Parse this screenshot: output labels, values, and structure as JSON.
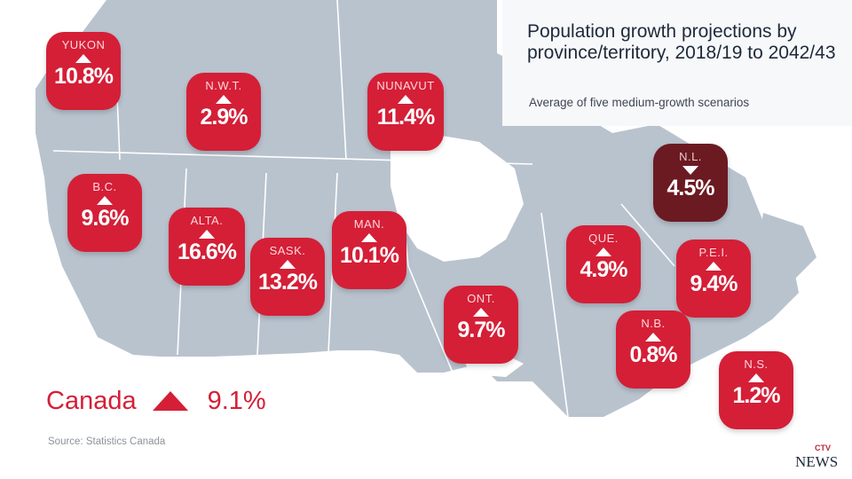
{
  "title": "Population growth projections by province/territory, 2018/19 to 2042/43",
  "subtitle": "Average of five medium-growth scenarios",
  "regions": [
    {
      "abbr": "YUKON",
      "value": "10.8%",
      "direction": "up"
    },
    {
      "abbr": "N.W.T.",
      "value": "2.9%",
      "direction": "up"
    },
    {
      "abbr": "NUNAVUT",
      "value": "11.4%",
      "direction": "up"
    },
    {
      "abbr": "N.L.",
      "value": "4.5%",
      "direction": "down"
    },
    {
      "abbr": "B.C.",
      "value": "9.6%",
      "direction": "up"
    },
    {
      "abbr": "ALTA.",
      "value": "16.6%",
      "direction": "up"
    },
    {
      "abbr": "SASK.",
      "value": "13.2%",
      "direction": "up"
    },
    {
      "abbr": "MAN.",
      "value": "10.1%",
      "direction": "up"
    },
    {
      "abbr": "QUE.",
      "value": "4.9%",
      "direction": "up"
    },
    {
      "abbr": "P.E.I.",
      "value": "9.4%",
      "direction": "up"
    },
    {
      "abbr": "ONT.",
      "value": "9.7%",
      "direction": "up"
    },
    {
      "abbr": "N.B.",
      "value": "0.8%",
      "direction": "up"
    },
    {
      "abbr": "N.S.",
      "value": "1.2%",
      "direction": "up"
    }
  ],
  "national": {
    "name": "Canada",
    "value": "9.1%",
    "direction": "up"
  },
  "source": "Source: Statistics Canada",
  "logo": {
    "top": "CTV",
    "bottom": "NEWS"
  },
  "colors": {
    "increase": "#d41f37",
    "decrease": "#6b1a22",
    "land": "#b9c3ce",
    "water": "#ffffff"
  }
}
